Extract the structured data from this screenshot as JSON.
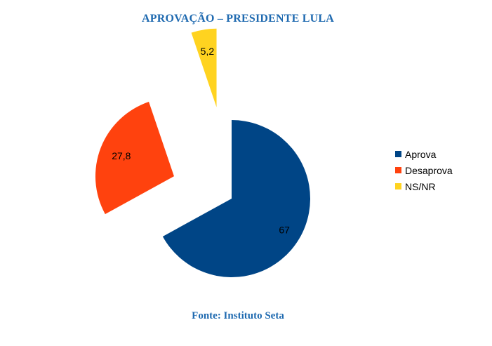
{
  "page": {
    "title": "APROVAÇÃO – PRESIDENTE LULA",
    "source": "Fonte: Instituto Seta"
  },
  "chart_data": {
    "type": "pie",
    "title": "APROVAÇÃO – PRESIDENTE LULA",
    "exploded": true,
    "legend_position": "right",
    "slices": [
      {
        "label": "Aprova",
        "value": 67,
        "display": "67",
        "color": "#004586"
      },
      {
        "label": "Desaprova",
        "value": 27.8,
        "display": "27,8",
        "color": "#ff420e"
      },
      {
        "label": "NS/NR",
        "value": 5.2,
        "display": "5,2",
        "color": "#ffd320"
      }
    ]
  }
}
